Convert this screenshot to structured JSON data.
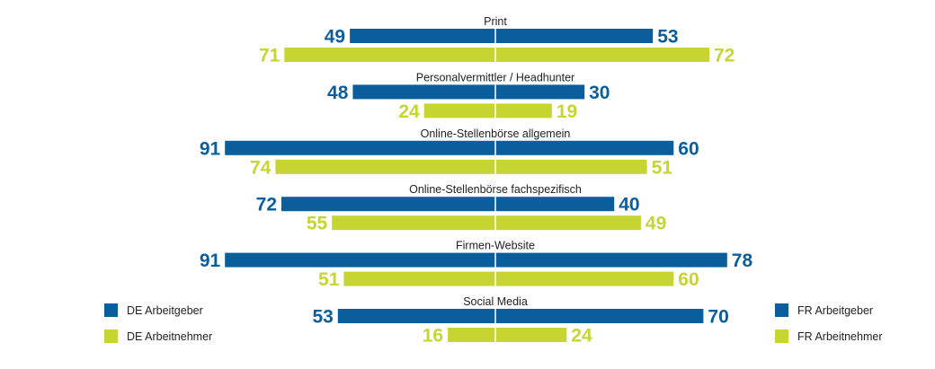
{
  "colors": {
    "arbeitgeber": "#0b5e9c",
    "arbeitnehmer": "#c6d531",
    "axis": "#ffffff"
  },
  "legend_left": [
    {
      "label": "DE Arbeitgeber",
      "color_key": "arbeitgeber"
    },
    {
      "label": "DE Arbeitnehmer",
      "color_key": "arbeitnehmer"
    }
  ],
  "legend_right": [
    {
      "label": "FR Arbeitgeber",
      "color_key": "arbeitgeber"
    },
    {
      "label": "FR Arbeitnehmer",
      "color_key": "arbeitnehmer"
    }
  ],
  "chart_data": {
    "type": "bar",
    "orientation": "horizontal-diverging",
    "categories": [
      "Print",
      "Personalvermittler / Headhunter",
      "Online-Stellenbörse allgemein",
      "Online-Stellenbörse fachspezifisch",
      "Firmen-Website",
      "Social Media"
    ],
    "series": [
      {
        "name": "DE Arbeitgeber",
        "side": "left",
        "color_key": "arbeitgeber",
        "values": [
          49,
          48,
          91,
          72,
          91,
          53
        ]
      },
      {
        "name": "DE Arbeitnehmer",
        "side": "left",
        "color_key": "arbeitnehmer",
        "values": [
          71,
          24,
          74,
          55,
          51,
          16
        ]
      },
      {
        "name": "FR Arbeitgeber",
        "side": "right",
        "color_key": "arbeitgeber",
        "values": [
          53,
          30,
          60,
          40,
          78,
          70
        ]
      },
      {
        "name": "FR Arbeitnehmer",
        "side": "right",
        "color_key": "arbeitnehmer",
        "values": [
          72,
          19,
          51,
          49,
          60,
          24
        ]
      }
    ],
    "xlim": [
      0,
      100
    ],
    "grid": false,
    "legend_position": "bottom-left and bottom-right"
  }
}
